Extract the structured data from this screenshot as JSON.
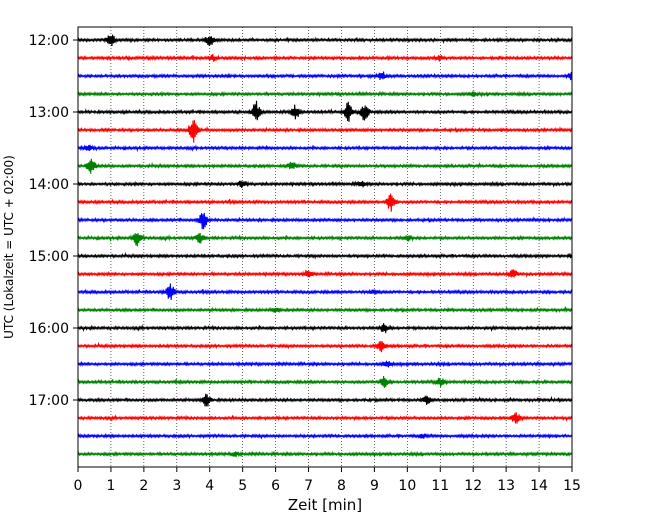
{
  "chart_data": {
    "type": "line",
    "title": "",
    "xlabel": "Zeit  [min]",
    "ylabel": "UTC (Lokalzeit = UTC + 02:00)",
    "xlim": [
      0,
      15
    ],
    "x_ticks": [
      0,
      1,
      2,
      3,
      4,
      5,
      6,
      7,
      8,
      9,
      10,
      11,
      12,
      13,
      14,
      15
    ],
    "y_hour_labels": [
      "12:00",
      "13:00",
      "14:00",
      "15:00",
      "16:00",
      "17:00"
    ],
    "grid": "vertical dotted at each minute",
    "trace_interval_min": 15,
    "colors": [
      "#000000",
      "#ff0000",
      "#0000ff",
      "#008000"
    ],
    "traces": [
      {
        "start": "12:00",
        "color": "#000000",
        "events": [
          [
            1.0,
            1.0
          ],
          [
            4.0,
            1.0
          ]
        ]
      },
      {
        "start": "12:15",
        "color": "#ff0000",
        "events": [
          [
            4.1,
            0.5
          ],
          [
            11.0,
            0.5
          ]
        ]
      },
      {
        "start": "12:30",
        "color": "#0000ff",
        "events": [
          [
            9.2,
            0.8
          ],
          [
            15.0,
            0.6
          ]
        ]
      },
      {
        "start": "12:45",
        "color": "#008000",
        "events": [
          [
            12.0,
            0.4
          ]
        ]
      },
      {
        "start": "13:00",
        "color": "#000000",
        "events": [
          [
            5.4,
            1.6
          ],
          [
            6.6,
            1.2
          ],
          [
            8.2,
            1.8
          ],
          [
            8.7,
            1.6
          ]
        ]
      },
      {
        "start": "13:15",
        "color": "#ff0000",
        "events": [
          [
            3.5,
            2.2
          ]
        ]
      },
      {
        "start": "13:30",
        "color": "#0000ff",
        "events": [
          [
            0.3,
            0.5
          ]
        ]
      },
      {
        "start": "13:45",
        "color": "#008000",
        "events": [
          [
            0.4,
            1.4
          ],
          [
            6.5,
            0.6
          ]
        ]
      },
      {
        "start": "14:00",
        "color": "#000000",
        "events": [
          [
            5.0,
            0.6
          ],
          [
            8.6,
            0.5
          ]
        ]
      },
      {
        "start": "14:15",
        "color": "#ff0000",
        "events": [
          [
            9.5,
            1.6
          ]
        ]
      },
      {
        "start": "14:30",
        "color": "#0000ff",
        "events": [
          [
            3.8,
            1.6
          ]
        ]
      },
      {
        "start": "14:45",
        "color": "#008000",
        "events": [
          [
            1.8,
            1.3
          ],
          [
            3.7,
            0.9
          ],
          [
            10.0,
            0.5
          ]
        ]
      },
      {
        "start": "15:00",
        "color": "#000000",
        "events": [
          [
            15.0,
            0.4
          ]
        ]
      },
      {
        "start": "15:15",
        "color": "#ff0000",
        "events": [
          [
            7.0,
            0.5
          ],
          [
            13.2,
            0.9
          ]
        ]
      },
      {
        "start": "15:30",
        "color": "#0000ff",
        "events": [
          [
            2.8,
            1.5
          ],
          [
            9.0,
            0.5
          ]
        ]
      },
      {
        "start": "15:45",
        "color": "#008000",
        "events": [
          [
            6.0,
            0.4
          ]
        ]
      },
      {
        "start": "16:00",
        "color": "#000000",
        "events": [
          [
            9.3,
            0.8
          ]
        ]
      },
      {
        "start": "16:15",
        "color": "#ff0000",
        "events": [
          [
            9.2,
            1.0
          ]
        ]
      },
      {
        "start": "16:30",
        "color": "#0000ff",
        "events": [
          [
            9.4,
            0.5
          ]
        ]
      },
      {
        "start": "16:45",
        "color": "#008000",
        "events": [
          [
            9.3,
            1.1
          ],
          [
            11.0,
            0.7
          ]
        ]
      },
      {
        "start": "17:00",
        "color": "#000000",
        "events": [
          [
            3.9,
            1.1
          ],
          [
            10.6,
            0.8
          ]
        ]
      },
      {
        "start": "17:15",
        "color": "#ff0000",
        "events": [
          [
            13.3,
            1.0
          ]
        ]
      },
      {
        "start": "17:30",
        "color": "#0000ff",
        "events": [
          [
            10.5,
            0.4
          ]
        ]
      },
      {
        "start": "17:45",
        "color": "#008000",
        "events": [
          [
            4.8,
            0.4
          ]
        ]
      }
    ]
  }
}
